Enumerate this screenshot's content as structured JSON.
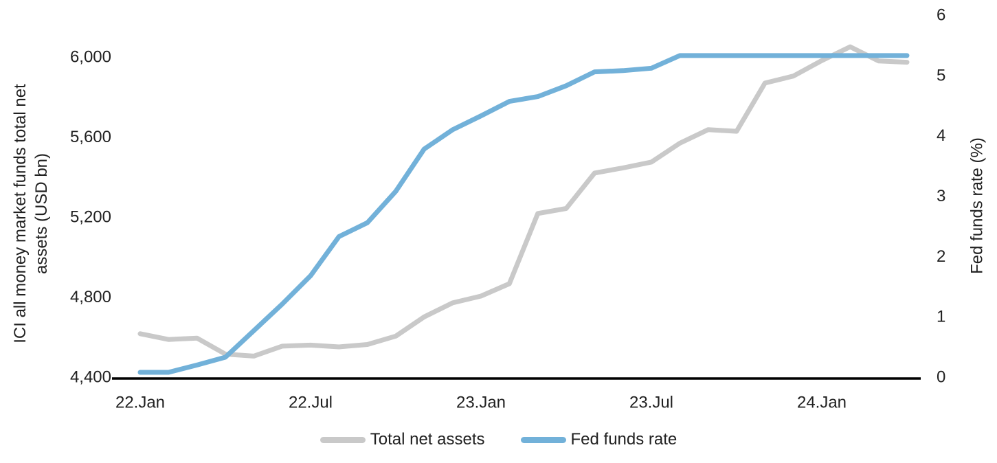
{
  "chart_data": {
    "type": "line",
    "title": "",
    "grid": false,
    "background_color": "#ffffff",
    "axis_color": "#000000",
    "text_color": "#212121",
    "x": [
      "22.Jan",
      "22.Feb",
      "22.Mar",
      "22.Apr",
      "22.May",
      "22.Jun",
      "22.Jul",
      "22.Aug",
      "22.Sep",
      "22.Oct",
      "22.Nov",
      "22.Dec",
      "23.Jan",
      "23.Feb",
      "23.Mar",
      "23.Apr",
      "23.May",
      "23.Jun",
      "23.Jul",
      "23.Aug",
      "23.Sep",
      "23.Oct",
      "23.Nov",
      "23.Dec",
      "24.Jan",
      "24.Feb",
      "24.Mar",
      "24.Apr"
    ],
    "x_tick_labels": [
      "22.Jan",
      "22.Jul",
      "23.Jan",
      "23.Jul",
      "24.Jan"
    ],
    "series": [
      {
        "name": "Total net assets",
        "axis": "left",
        "color": "#c9c9c9",
        "values": [
          4617,
          4588,
          4595,
          4515,
          4505,
          4555,
          4560,
          4551,
          4563,
          4605,
          4701,
          4771,
          4805,
          4867,
          5218,
          5243,
          5420,
          5446,
          5475,
          5569,
          5637,
          5629,
          5870,
          5905,
          5982,
          6051,
          5980,
          5974
        ]
      },
      {
        "name": "Fed funds rate",
        "axis": "right",
        "color": "#72b1d9",
        "values": [
          0.08,
          0.08,
          0.2,
          0.33,
          0.77,
          1.21,
          1.68,
          2.33,
          2.56,
          3.08,
          3.78,
          4.1,
          4.33,
          4.57,
          4.65,
          4.83,
          5.06,
          5.08,
          5.12,
          5.33,
          5.33,
          5.33,
          5.33,
          5.33,
          5.33,
          5.33,
          5.33,
          5.33
        ]
      }
    ],
    "left_axis": {
      "title": "ICI all money market funds total net assets (USD bn)",
      "ticks": [
        "4,400",
        "4,800",
        "5,200",
        "5,600",
        "6,000"
      ],
      "tick_values": [
        4400,
        4800,
        5200,
        5600,
        6000
      ],
      "range": [
        4400,
        6210
      ]
    },
    "right_axis": {
      "title": "Fed funds rate (%)",
      "ticks": [
        "0",
        "1",
        "2",
        "3",
        "4",
        "5",
        "6"
      ],
      "tick_values": [
        0,
        1,
        2,
        3,
        4,
        5,
        6
      ],
      "range": [
        0,
        6
      ]
    },
    "legend": {
      "position": "bottom",
      "items": [
        "Total net assets",
        "Fed funds rate"
      ]
    }
  }
}
